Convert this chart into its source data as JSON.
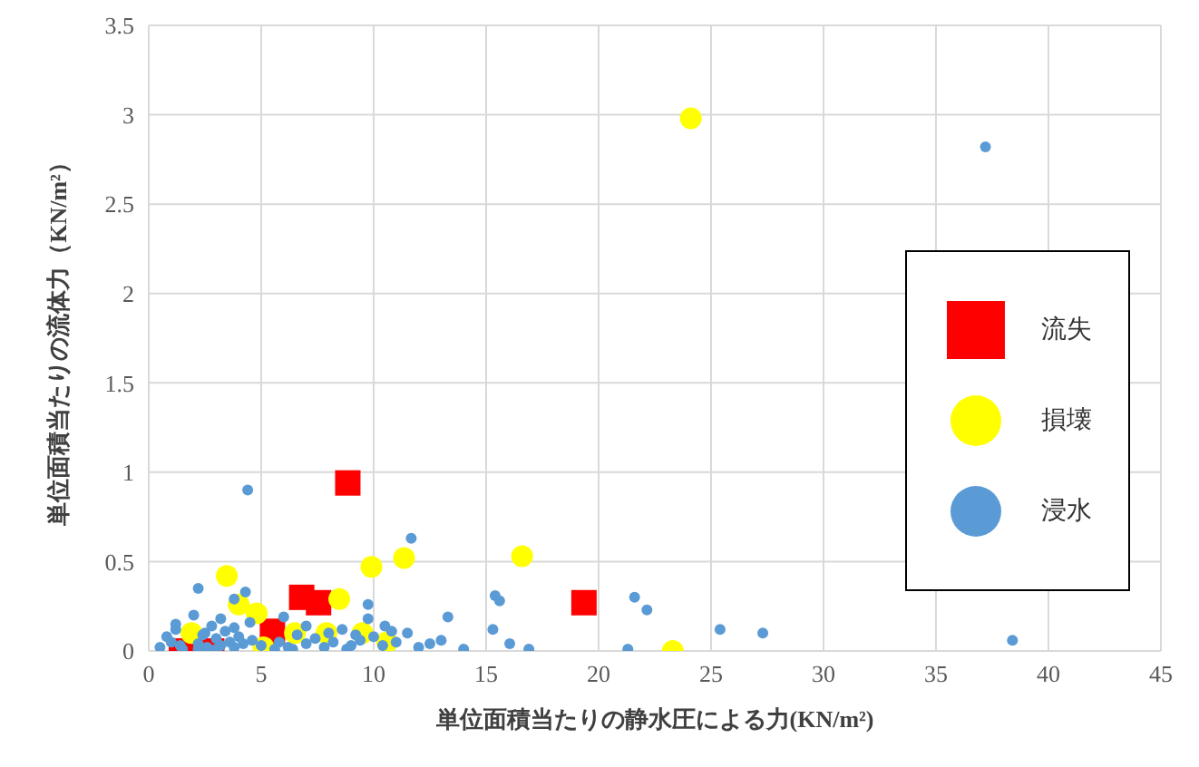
{
  "chart_data": {
    "type": "scatter",
    "xlabel": "単位面積当たりの静水圧による力(KN/m²)",
    "ylabel": "単位面積当たりの流体力（KN/m²）",
    "xlim": [
      0,
      45
    ],
    "xticks": [
      0,
      5,
      10,
      15,
      20,
      25,
      30,
      35,
      40,
      45
    ],
    "ylim": [
      0,
      3.5
    ],
    "yticks": [
      0,
      0.5,
      1,
      1.5,
      2,
      2.5,
      3,
      3.5
    ],
    "grid": true,
    "legend": "right",
    "series": [
      {
        "name": "流失",
        "color": "#ff0000",
        "marker": "square",
        "x": [
          8.85,
          6.8,
          7.55,
          19.35,
          1.45,
          2.8,
          5.5
        ],
        "values": [
          0.94,
          0.3,
          0.27,
          0.27,
          0,
          0,
          0.11
        ]
      },
      {
        "name": "損壊",
        "color": "#ffff00",
        "marker": "circle",
        "x": [
          24.1,
          3.47,
          9.9,
          11.35,
          8.47,
          4.8,
          4,
          7.9,
          9.5,
          10.6,
          5.1,
          1.9,
          6.5,
          16.6,
          23.3
        ],
        "values": [
          2.98,
          0.42,
          0.47,
          0.52,
          0.29,
          0.21,
          0.26,
          0.1,
          0.1,
          0.05,
          0.02,
          0.1,
          0.1,
          0.53,
          0
        ]
      },
      {
        "name": "浸水",
        "color": "#5b9bd5",
        "marker": "circle",
        "x": [
          37.2,
          4.4,
          11.67,
          2.2,
          4.3,
          3.8,
          9.75,
          9.75,
          13.3,
          10.5,
          15.4,
          15.6,
          15.3,
          16.05,
          16.9,
          21.6,
          22.15,
          21.3,
          25.4,
          27.3,
          38.4,
          0.5,
          0.8,
          1,
          1.2,
          1.4,
          2,
          2.2,
          2.4,
          2.6,
          2.8,
          3,
          3.2,
          3.4,
          3.6,
          3.8,
          4,
          4.2,
          4.6,
          5,
          5.8,
          6.2,
          6.6,
          7,
          7.4,
          7.8,
          8.2,
          8.6,
          9,
          9.4,
          10,
          10.4,
          11,
          11.5,
          12,
          12.5,
          13,
          14,
          1.2,
          2.5,
          3.2,
          3.8,
          4.5,
          6,
          7,
          8,
          9.2,
          10.8,
          1.5,
          2.2,
          3,
          5.6,
          6.4,
          8.8
        ],
        "values": [
          2.82,
          0.9,
          0.63,
          0.35,
          0.33,
          0.29,
          0.26,
          0.18,
          0.19,
          0.14,
          0.31,
          0.28,
          0.12,
          0.04,
          0.01,
          0.3,
          0.23,
          0.01,
          0.12,
          0.1,
          0.06,
          0.02,
          0.08,
          0.05,
          0.12,
          0.03,
          0.2,
          0.04,
          0.09,
          0.02,
          0.14,
          0.07,
          0.03,
          0.11,
          0.05,
          0.02,
          0.08,
          0.04,
          0.06,
          0.03,
          0.05,
          0.02,
          0.09,
          0.04,
          0.07,
          0.02,
          0.05,
          0.12,
          0.03,
          0.06,
          0.08,
          0.03,
          0.05,
          0.1,
          0.02,
          0.04,
          0.06,
          0.01,
          0.15,
          0.1,
          0.18,
          0.13,
          0.16,
          0.19,
          0.14,
          0.1,
          0.09,
          0.11,
          0.01,
          0.01,
          0.01,
          0.01,
          0.01,
          0.01
        ]
      }
    ]
  }
}
